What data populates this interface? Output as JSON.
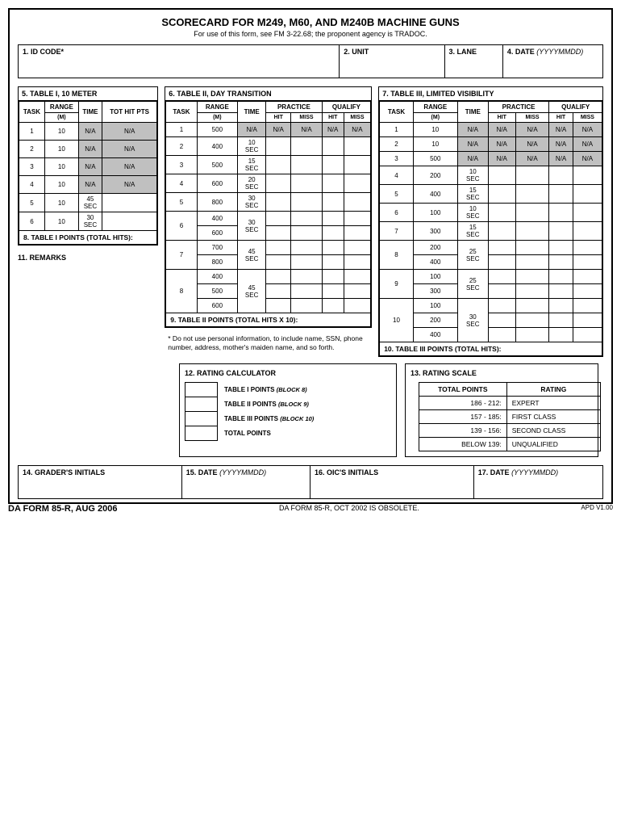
{
  "title": "SCORECARD FOR M249, M60, AND M240B MACHINE GUNS",
  "subtitle": "For use of this form, see FM 3-22.68; the proponent agency is TRADOC.",
  "header": {
    "c1": "1. ID CODE*",
    "c2": "2. UNIT",
    "c3": "3. LANE",
    "c4": "4. DATE",
    "c4_ital": "(YYYYMMDD)"
  },
  "table1": {
    "title": "5. TABLE I, 10 METER",
    "h_task": "TASK",
    "h_range": "RANGE",
    "h_range_sub": "(M)",
    "h_time": "TIME",
    "h_tot": "TOT HIT PTS",
    "rows": [
      {
        "task": "1",
        "range": "10",
        "time": "N/A",
        "tot": "N/A",
        "na": true
      },
      {
        "task": "2",
        "range": "10",
        "time": "N/A",
        "tot": "N/A",
        "na": true
      },
      {
        "task": "3",
        "range": "10",
        "time": "N/A",
        "tot": "N/A",
        "na": true
      },
      {
        "task": "4",
        "range": "10",
        "time": "N/A",
        "tot": "N/A",
        "na": true
      },
      {
        "task": "5",
        "range": "10",
        "time": "45 SEC",
        "tot": ""
      },
      {
        "task": "6",
        "range": "10",
        "time": "30 SEC",
        "tot": ""
      }
    ],
    "points": "8. TABLE I POINTS (TOTAL HITS):"
  },
  "remarks": "11. REMARKS",
  "table2": {
    "title": "6. TABLE II, DAY TRANSITION",
    "h_task": "TASK",
    "h_range": "RANGE",
    "h_range_sub": "(M)",
    "h_time": "TIME",
    "h_prac": "PRACTICE",
    "h_qual": "QUALIFY",
    "h_hit": "HIT",
    "h_miss": "MISS",
    "rows": [
      {
        "task": "1",
        "ranges": [
          "500"
        ],
        "time": "N/A",
        "na": true
      },
      {
        "task": "2",
        "ranges": [
          "400"
        ],
        "time": "10 SEC"
      },
      {
        "task": "3",
        "ranges": [
          "500"
        ],
        "time": "15 SEC"
      },
      {
        "task": "4",
        "ranges": [
          "600"
        ],
        "time": "20 SEC"
      },
      {
        "task": "5",
        "ranges": [
          "800"
        ],
        "time": "30 SEC"
      },
      {
        "task": "6",
        "ranges": [
          "400",
          "600"
        ],
        "time": "30 SEC"
      },
      {
        "task": "7",
        "ranges": [
          "700",
          "800"
        ],
        "time": "45 SEC"
      },
      {
        "task": "8",
        "ranges": [
          "400",
          "500",
          "600"
        ],
        "time": "45 SEC"
      }
    ],
    "points": "9. TABLE II POINTS (TOTAL HITS X 10):"
  },
  "note": "* Do not use personal information, to include name, SSN, phone number, address, mother's maiden name, and so forth.",
  "table3": {
    "title": "7. TABLE III, LIMITED VISIBILITY",
    "h_task": "TASK",
    "h_range": "RANGE",
    "h_range_sub": "(M)",
    "h_time": "TIME",
    "h_prac": "PRACTICE",
    "h_qual": "QUALIFY",
    "h_hit": "HIT",
    "h_miss": "MISS",
    "rows": [
      {
        "task": "1",
        "ranges": [
          "10"
        ],
        "time": "N/A",
        "na": true
      },
      {
        "task": "2",
        "ranges": [
          "10"
        ],
        "time": "N/A",
        "na": true
      },
      {
        "task": "3",
        "ranges": [
          "500"
        ],
        "time": "N/A",
        "na": true
      },
      {
        "task": "4",
        "ranges": [
          "200"
        ],
        "time": "10 SEC"
      },
      {
        "task": "5",
        "ranges": [
          "400"
        ],
        "time": "15 SEC"
      },
      {
        "task": "6",
        "ranges": [
          "100"
        ],
        "time": "10 SEC"
      },
      {
        "task": "7",
        "ranges": [
          "300"
        ],
        "time": "15 SEC"
      },
      {
        "task": "8",
        "ranges": [
          "200",
          "400"
        ],
        "time": "25 SEC"
      },
      {
        "task": "9",
        "ranges": [
          "100",
          "300"
        ],
        "time": "25 SEC"
      },
      {
        "task": "10",
        "ranges": [
          "100",
          "200",
          "400"
        ],
        "time": "30 SEC"
      }
    ],
    "points": "10. TABLE III POINTS (TOTAL HITS):"
  },
  "calc": {
    "title": "12. RATING CALCULATOR",
    "r1": "TABLE I POINTS",
    "r1_ital": "(BLOCK 8)",
    "r2": "TABLE II POINTS",
    "r2_ital": "(BLOCK 9)",
    "r3": "TABLE III POINTS",
    "r3_ital": "(BLOCK 10)",
    "r4": "TOTAL POINTS"
  },
  "rating": {
    "title": "13. RATING SCALE",
    "h1": "TOTAL POINTS",
    "h2": "RATING",
    "rows": [
      {
        "pts": "186 - 212:",
        "rat": "EXPERT"
      },
      {
        "pts": "157 - 185:",
        "rat": "FIRST CLASS"
      },
      {
        "pts": "139 - 156:",
        "rat": "SECOND CLASS"
      },
      {
        "pts": "BELOW 139:",
        "rat": "UNQUALIFIED"
      }
    ]
  },
  "footer": {
    "c1": "14. GRADER'S INITIALS",
    "c2": "15. DATE",
    "c2_ital": "(YYYYMMDD)",
    "c3": "16. OIC'S INITIALS",
    "c4": "17. DATE",
    "c4_ital": "(YYYYMMDD)"
  },
  "formid": {
    "left": "DA FORM 85-R, AUG 2006",
    "mid": "DA FORM 85-R, OCT 2002 IS OBSOLETE.",
    "right": "APD V1.00"
  }
}
